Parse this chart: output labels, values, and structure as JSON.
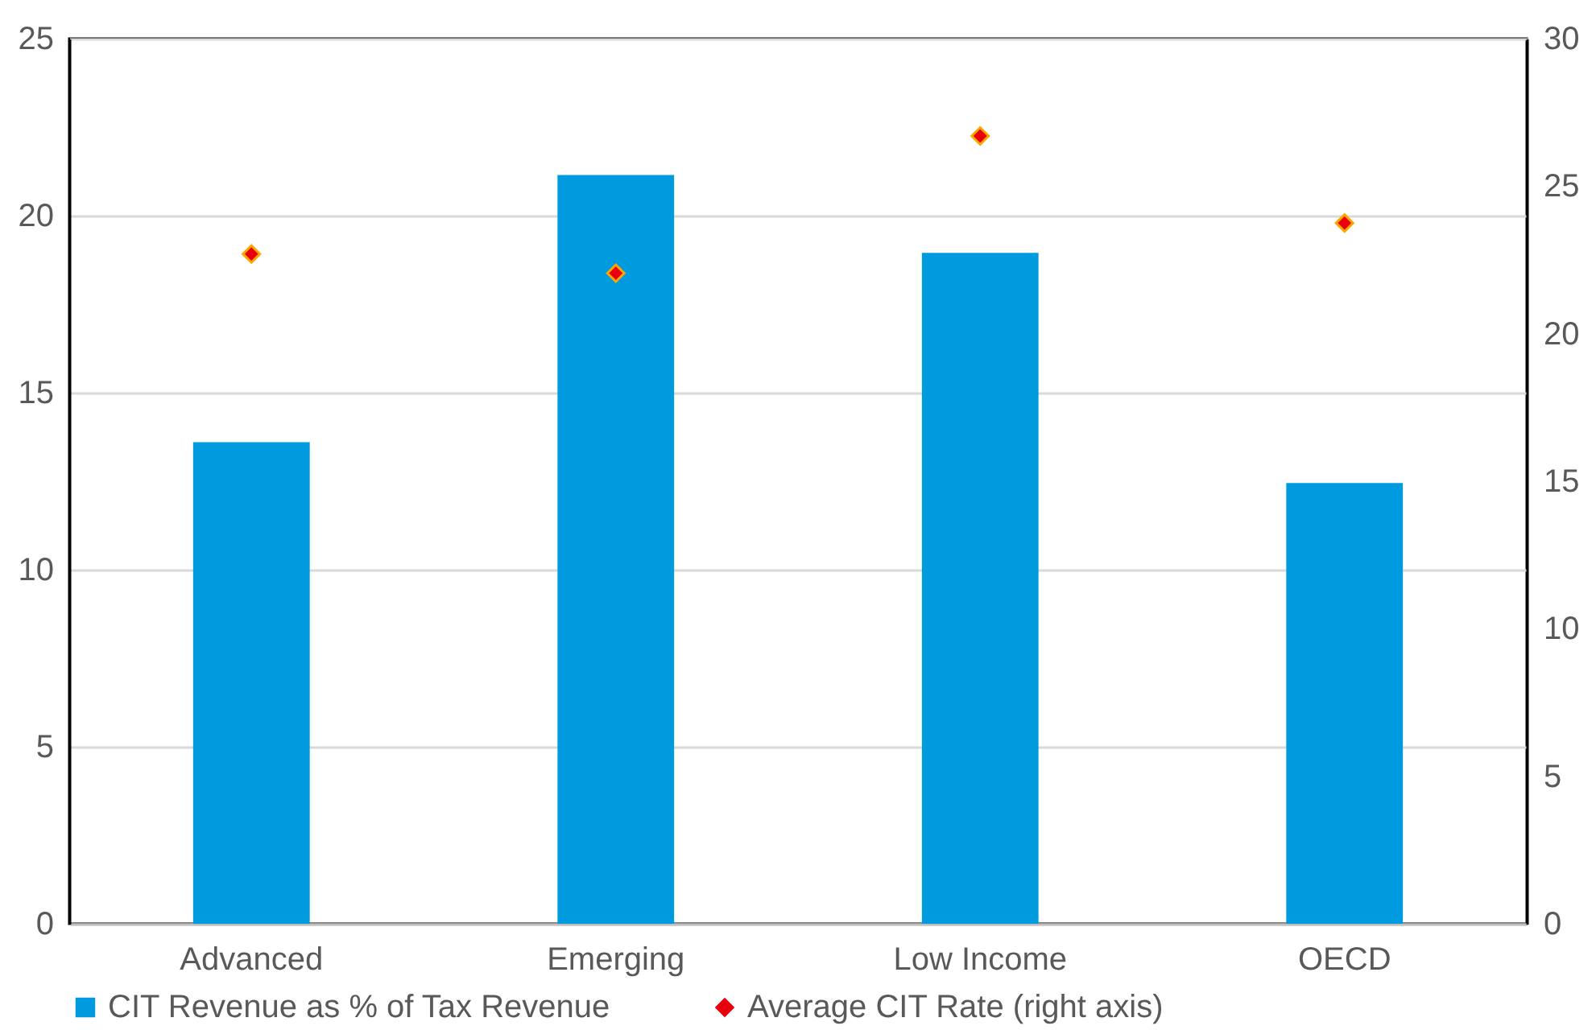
{
  "chart_data": {
    "type": "bar",
    "categories": [
      "Advanced",
      "Emerging",
      "Low Income",
      "OECD"
    ],
    "series": [
      {
        "name": "CIT Revenue as % of Tax Revenue",
        "color": "#009ade",
        "values": [
          13.6,
          21.15,
          18.95,
          12.45
        ]
      },
      {
        "name": "Average CIT Rate (right axis)",
        "type": "scatter",
        "axis": "y2",
        "marker": "diamond",
        "color": "#e8000b",
        "values": [
          22.7,
          22.05,
          26.7,
          23.75
        ]
      }
    ],
    "ylim": [
      0,
      25
    ],
    "yticks": [
      0,
      5,
      10,
      15,
      20,
      25
    ],
    "y2lim": [
      0,
      30
    ],
    "y2ticks": [
      0,
      5,
      10,
      15,
      20,
      25,
      30
    ],
    "grid": "y",
    "legend": "bottom"
  }
}
